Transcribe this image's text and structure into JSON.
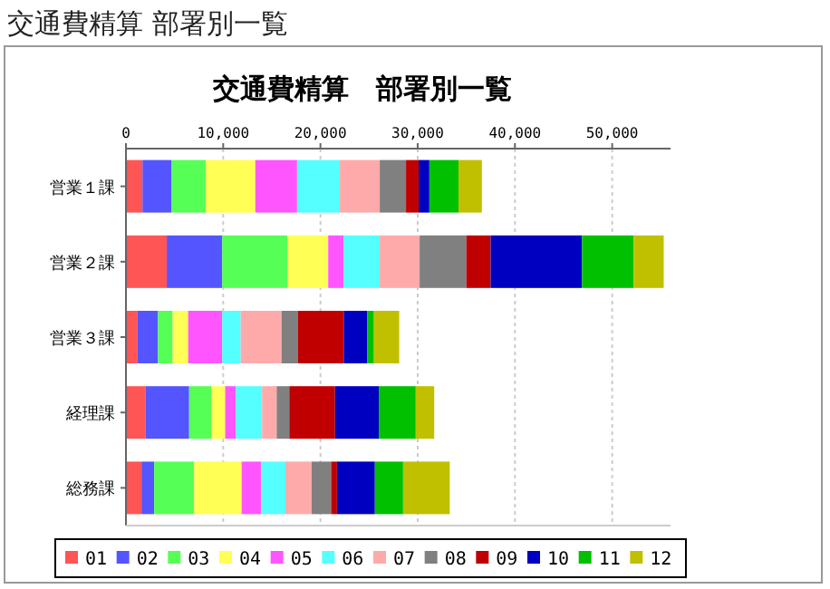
{
  "chart_data": {
    "type": "bar",
    "orientation": "horizontal",
    "stacked": true,
    "title": "交通費精算　部署別一覧",
    "annotations": [
      "交通費精算  部署別一覧"
    ],
    "categories": [
      "営業１課",
      "営業２課",
      "営業３課",
      "経理課",
      "総務課"
    ],
    "xlim": [
      0,
      56000
    ],
    "xticks": [
      0,
      {
        "value": 10000,
        "label": "10,000"
      },
      {
        "value": 20000,
        "label": "20,000"
      },
      {
        "value": 30000,
        "label": "30,000"
      },
      {
        "value": 40000,
        "label": "40,000"
      },
      {
        "value": 50000,
        "label": "50,000"
      }
    ],
    "grid": "x",
    "legend": "bottom",
    "series": [
      {
        "name": "01",
        "color": "#ff5555",
        "values": [
          1700,
          4200,
          1200,
          2000,
          1600
        ]
      },
      {
        "name": "02",
        "color": "#5555ff",
        "values": [
          3000,
          5700,
          2100,
          4500,
          1300
        ]
      },
      {
        "name": "03",
        "color": "#55ff55",
        "values": [
          3500,
          6700,
          1500,
          2300,
          4100
        ]
      },
      {
        "name": "04",
        "color": "#ffff55",
        "values": [
          5100,
          4200,
          1600,
          1400,
          4900
        ]
      },
      {
        "name": "05",
        "color": "#ff55ff",
        "values": [
          4300,
          1600,
          3500,
          1100,
          2000
        ]
      },
      {
        "name": "06",
        "color": "#55ffff",
        "values": [
          4400,
          3700,
          1900,
          2700,
          2500
        ]
      },
      {
        "name": "07",
        "color": "#ffaaaa",
        "values": [
          4100,
          4100,
          4200,
          1500,
          2700
        ]
      },
      {
        "name": "08",
        "color": "#808080",
        "values": [
          2700,
          4800,
          1700,
          1300,
          2000
        ]
      },
      {
        "name": "09",
        "color": "#c00000",
        "values": [
          1300,
          2500,
          4700,
          4700,
          600
        ]
      },
      {
        "name": "10",
        "color": "#0000c0",
        "values": [
          1100,
          9400,
          2400,
          4500,
          3900
        ]
      },
      {
        "name": "11",
        "color": "#00c000",
        "values": [
          3000,
          5300,
          700,
          3800,
          2900
        ]
      },
      {
        "name": "12",
        "color": "#c0c000",
        "values": [
          2400,
          3100,
          2600,
          1900,
          4800
        ]
      }
    ]
  }
}
